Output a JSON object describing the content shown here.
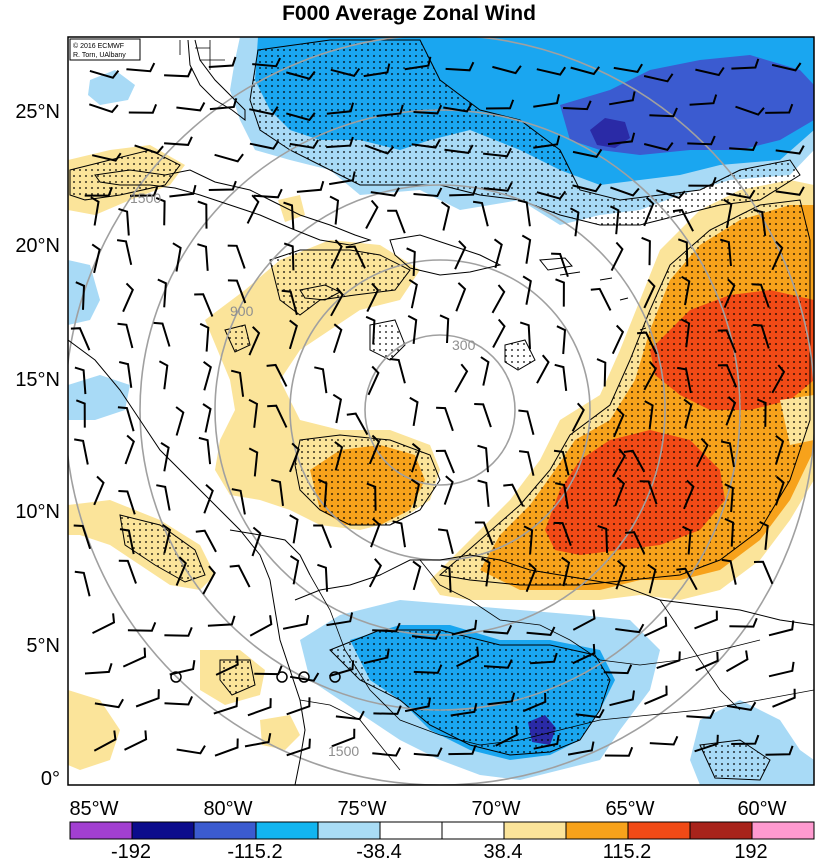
{
  "title": "F000 Average Zonal Wind",
  "credit": {
    "line1": "© 2016 ECMWF",
    "line2": "R. Torn, UAlbany"
  },
  "lat_labels": [
    "25°N",
    "20°N",
    "15°N",
    "10°N",
    "5°N",
    "0°"
  ],
  "lon_labels": [
    "85°W",
    "80°W",
    "75°W",
    "70°W",
    "65°W",
    "60°W"
  ],
  "range_rings": {
    "labels": [
      "300",
      "900",
      "1500"
    ],
    "color": "#a0a0a0"
  },
  "colorbar": {
    "ticks": [
      "-192",
      "-115.2",
      "-38.4",
      "38.4",
      "115.2",
      "192"
    ],
    "colors": [
      "#a23fd1",
      "#0c0c8c",
      "#3b5bd0",
      "#12b5f0",
      "#a9dcf5",
      "#ffffff",
      "#ffffff",
      "#fbe49a",
      "#f7a21b",
      "#f14a16",
      "#a8231b",
      "#ff9ad0"
    ]
  },
  "palette": {
    "dark_blue": "#2a2aa6",
    "blue": "#3b7fd9",
    "cyan": "#1aa6f0",
    "light_blue": "#a8daf6",
    "light_yellow": "#fbe49a",
    "orange": "#f7a21b",
    "red": "#f14a16",
    "ring": "#a0a0a0"
  }
}
